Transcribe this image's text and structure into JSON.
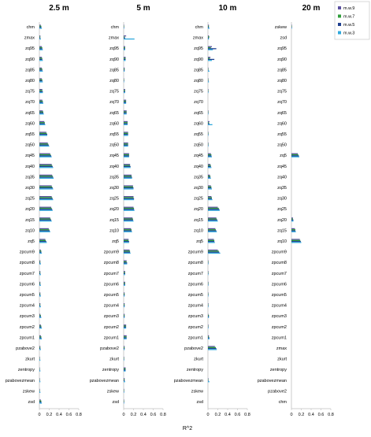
{
  "figure": {
    "xlabel": "R^2",
    "legend_position": "top-right"
  },
  "colors": {
    "m.w.9": "#5a4fa0",
    "m.w.7": "#2f9e3a",
    "m.w.5": "#1f3f8f",
    "m.w.3": "#2fa8dc",
    "axis": "#bfbfbf",
    "text": "#000000"
  },
  "chart_data": [
    {
      "type": "bar",
      "orientation": "horizontal",
      "title": "2.5 m",
      "xlim": [
        0,
        0.8
      ],
      "xticks": [
        "0",
        "0.2",
        "0.4",
        "0.6",
        "0.8"
      ],
      "categories": [
        "chm",
        "zmax",
        "zq95",
        "zq90",
        "zq85",
        "zq80",
        "zq75",
        "zq70",
        "zq65",
        "zq60",
        "zq55",
        "zq50",
        "zq45",
        "zq40",
        "zq35",
        "zq30",
        "zq25",
        "zq20",
        "zq15",
        "zq10",
        "zq5",
        "zpcum9",
        "zpcum8",
        "zpcum7",
        "zpcum6",
        "zpcum5",
        "zpcum4",
        "zpcum3",
        "zpcum2",
        "zpcum1",
        "pzabove2",
        "zkurt",
        "zentropy",
        "pzabovezmean",
        "zskew",
        "zsd"
      ],
      "series": [
        {
          "name": "m.w.9",
          "values": [
            0.03,
            0.02,
            0.05,
            0.05,
            0.05,
            0.05,
            0.06,
            0.06,
            0.07,
            0.1,
            0.14,
            0.17,
            0.22,
            0.25,
            0.26,
            0.25,
            0.25,
            0.24,
            0.22,
            0.19,
            0.12,
            0.03,
            0.02,
            0.02,
            0.02,
            0.02,
            0.02,
            0.02,
            0.03,
            0.03,
            0.02,
            0.01,
            0.01,
            0.01,
            0.01,
            0.03
          ]
        },
        {
          "name": "m.w.7",
          "values": [
            0.04,
            0.02,
            0.06,
            0.06,
            0.06,
            0.06,
            0.06,
            0.07,
            0.08,
            0.11,
            0.15,
            0.18,
            0.23,
            0.26,
            0.27,
            0.26,
            0.26,
            0.25,
            0.23,
            0.2,
            0.13,
            0.04,
            0.02,
            0.02,
            0.02,
            0.02,
            0.02,
            0.03,
            0.04,
            0.04,
            0.02,
            0.01,
            0.01,
            0.01,
            0.01,
            0.04
          ]
        },
        {
          "name": "m.w.5",
          "values": [
            0.04,
            0.02,
            0.06,
            0.06,
            0.06,
            0.06,
            0.07,
            0.07,
            0.08,
            0.11,
            0.16,
            0.19,
            0.24,
            0.27,
            0.28,
            0.27,
            0.27,
            0.26,
            0.24,
            0.21,
            0.14,
            0.04,
            0.02,
            0.02,
            0.02,
            0.02,
            0.02,
            0.03,
            0.04,
            0.04,
            0.02,
            0.01,
            0.01,
            0.01,
            0.01,
            0.04
          ]
        },
        {
          "name": "m.w.3",
          "values": [
            0.05,
            0.03,
            0.07,
            0.07,
            0.07,
            0.07,
            0.07,
            0.08,
            0.09,
            0.12,
            0.16,
            0.2,
            0.25,
            0.28,
            0.29,
            0.28,
            0.28,
            0.27,
            0.25,
            0.22,
            0.15,
            0.05,
            0.03,
            0.03,
            0.03,
            0.03,
            0.03,
            0.04,
            0.05,
            0.05,
            0.03,
            0.02,
            0.02,
            0.02,
            0.02,
            0.05
          ]
        }
      ]
    },
    {
      "type": "bar",
      "orientation": "horizontal",
      "title": "5 m",
      "xlim": [
        0,
        0.8
      ],
      "xticks": [
        "0",
        "0.2",
        "0.4",
        "0.6",
        "0.8"
      ],
      "categories": [
        "chm",
        "zmax",
        "zq95",
        "zq90",
        "zq85",
        "zq80",
        "zq75",
        "zq70",
        "zq65",
        "zq60",
        "zq55",
        "zq50",
        "zq45",
        "zq40",
        "zq35",
        "zq30",
        "zq25",
        "zq20",
        "zq15",
        "zq10",
        "zq5",
        "zpcum9",
        "zpcum8",
        "zpcum7",
        "zpcum6",
        "zpcum5",
        "zpcum4",
        "zpcum3",
        "zpcum2",
        "zpcum1",
        "pzabove2",
        "zkurt",
        "zentropy",
        "pzabovezmean",
        "zskew",
        "zsd"
      ],
      "series": [
        {
          "name": "m.w.9",
          "values": [
            0.01,
            0.05,
            0.03,
            0.04,
            0.02,
            0.01,
            0.03,
            0.05,
            0.06,
            0.08,
            0.09,
            0.09,
            0.11,
            0.13,
            0.16,
            0.19,
            0.2,
            0.2,
            0.18,
            0.15,
            0.1,
            0.12,
            0.06,
            0.03,
            0.03,
            0.02,
            0.02,
            0.02,
            0.05,
            0.06,
            0.02,
            0.01,
            0.04,
            0.02,
            0.01,
            0.01
          ]
        },
        {
          "name": "m.w.7",
          "values": [
            0.01,
            0.02,
            0.03,
            0.04,
            0.02,
            0.01,
            0.03,
            0.05,
            0.06,
            0.08,
            0.09,
            0.09,
            0.11,
            0.13,
            0.16,
            0.19,
            0.2,
            0.21,
            0.19,
            0.16,
            0.1,
            0.13,
            0.06,
            0.03,
            0.03,
            0.02,
            0.02,
            0.02,
            0.05,
            0.06,
            0.02,
            0.01,
            0.04,
            0.02,
            0.01,
            0.01
          ]
        },
        {
          "name": "m.w.5",
          "values": [
            0.01,
            0.03,
            0.03,
            0.04,
            0.02,
            0.01,
            0.03,
            0.05,
            0.06,
            0.08,
            0.09,
            0.09,
            0.11,
            0.14,
            0.17,
            0.2,
            0.21,
            0.21,
            0.19,
            0.16,
            0.11,
            0.13,
            0.07,
            0.03,
            0.03,
            0.02,
            0.02,
            0.02,
            0.05,
            0.06,
            0.02,
            0.01,
            0.04,
            0.02,
            0.01,
            0.01
          ]
        },
        {
          "name": "m.w.3",
          "values": [
            0.01,
            0.22,
            0.03,
            0.04,
            0.02,
            0.01,
            0.03,
            0.05,
            0.06,
            0.08,
            0.09,
            0.09,
            0.11,
            0.14,
            0.17,
            0.2,
            0.21,
            0.22,
            0.2,
            0.17,
            0.11,
            0.14,
            0.07,
            0.03,
            0.03,
            0.02,
            0.02,
            0.02,
            0.05,
            0.06,
            0.02,
            0.01,
            0.04,
            0.03,
            0.01,
            0.01
          ]
        }
      ]
    },
    {
      "type": "bar",
      "orientation": "horizontal",
      "title": "10 m",
      "xlim": [
        0,
        0.8
      ],
      "xticks": [
        "0",
        "0.2",
        "0.4",
        "0.6",
        "0.8"
      ],
      "categories": [
        "chm",
        "zmax",
        "zq95",
        "zq90",
        "zq85",
        "zq80",
        "zq75",
        "zq70",
        "zq65",
        "zq60",
        "zq55",
        "zq50",
        "zq45",
        "zq40",
        "zq35",
        "zq30",
        "zq25",
        "zq20",
        "zq15",
        "zq10",
        "zq5",
        "zpcum9",
        "zpcum8",
        "zpcum7",
        "zpcum6",
        "zpcum5",
        "zpcum4",
        "zpcum3",
        "zpcum2",
        "zpcum1",
        "pzabove2",
        "zkurt",
        "zentropy",
        "pzabovezmean",
        "zskew",
        "zsd"
      ],
      "series": [
        {
          "name": "m.w.9",
          "values": [
            0.02,
            0.02,
            0.08,
            0.05,
            0.01,
            0.01,
            0.01,
            0.0,
            0.01,
            0.03,
            0.01,
            0.01,
            0.06,
            0.05,
            0.04,
            0.06,
            0.07,
            0.2,
            0.17,
            0.15,
            0.12,
            0.2,
            0.01,
            0.01,
            0.01,
            0.01,
            0.01,
            0.01,
            0.01,
            0.02,
            0.14,
            0.0,
            0.0,
            0.01,
            0.0,
            0.0
          ]
        },
        {
          "name": "m.w.7",
          "values": [
            0.02,
            0.03,
            0.06,
            0.04,
            0.01,
            0.01,
            0.01,
            0.0,
            0.01,
            0.02,
            0.01,
            0.01,
            0.07,
            0.06,
            0.05,
            0.07,
            0.08,
            0.22,
            0.18,
            0.16,
            0.13,
            0.22,
            0.01,
            0.01,
            0.01,
            0.01,
            0.01,
            0.02,
            0.01,
            0.02,
            0.16,
            0.0,
            0.0,
            0.01,
            0.0,
            0.0
          ]
        },
        {
          "name": "m.w.5",
          "values": [
            0.02,
            0.02,
            0.17,
            0.13,
            0.01,
            0.01,
            0.01,
            0.0,
            0.01,
            0.03,
            0.01,
            0.01,
            0.07,
            0.06,
            0.05,
            0.07,
            0.08,
            0.23,
            0.19,
            0.17,
            0.13,
            0.23,
            0.01,
            0.01,
            0.01,
            0.01,
            0.01,
            0.02,
            0.01,
            0.03,
            0.17,
            0.0,
            0.0,
            0.01,
            0.0,
            0.0
          ]
        },
        {
          "name": "m.w.3",
          "values": [
            0.03,
            0.02,
            0.1,
            0.08,
            0.03,
            0.02,
            0.01,
            0.0,
            0.01,
            0.09,
            0.01,
            0.01,
            0.08,
            0.07,
            0.06,
            0.08,
            0.09,
            0.24,
            0.2,
            0.18,
            0.14,
            0.25,
            0.01,
            0.01,
            0.01,
            0.01,
            0.01,
            0.02,
            0.01,
            0.03,
            0.18,
            0.0,
            0.0,
            0.03,
            0.0,
            0.0
          ]
        }
      ]
    },
    {
      "type": "bar",
      "orientation": "horizontal",
      "title": "20 m",
      "xlim": [
        0,
        0.8
      ],
      "xticks": [
        "0",
        "0.2",
        "0.4",
        "0.6",
        "0.8"
      ],
      "categories": [
        "zskew",
        "zsd",
        "zq95",
        "zq90",
        "zq85",
        "zq80",
        "zq75",
        "zq70",
        "zq65",
        "zq60",
        "zq55",
        "zq50",
        "zq5",
        "zq45",
        "zq40",
        "zq35",
        "zq30",
        "zq25",
        "zq20",
        "zq15",
        "zq10",
        "zpcum9",
        "zpcum8",
        "zpcum7",
        "zpcum6",
        "zpcum5",
        "zpcum4",
        "zpcum3",
        "zpcum2",
        "zpcum1",
        "zmax",
        "zkurt",
        "zentropy",
        "pzabovezmean",
        "pzabove2",
        "chm"
      ],
      "series": [
        {
          "name": "m.w.9",
          "values": [
            0.01,
            0.0,
            0.0,
            0.0,
            0.0,
            0.0,
            0.0,
            0.0,
            0.0,
            0.0,
            0.0,
            0.0,
            0.13,
            0.0,
            0.0,
            0.0,
            0.0,
            0.0,
            0.03,
            0.07,
            0.17,
            0.0,
            0.0,
            0.0,
            0.0,
            0.0,
            0.0,
            0.0,
            0.0,
            0.0,
            0.0,
            0.0,
            0.0,
            0.0,
            0.0,
            0.0
          ]
        },
        {
          "name": "m.w.7",
          "values": [
            0.01,
            0.0,
            0.0,
            0.0,
            0.0,
            0.0,
            0.0,
            0.0,
            0.0,
            0.0,
            0.0,
            0.0,
            0.14,
            0.0,
            0.0,
            0.0,
            0.0,
            0.0,
            0.03,
            0.08,
            0.18,
            0.0,
            0.0,
            0.0,
            0.0,
            0.0,
            0.0,
            0.0,
            0.0,
            0.0,
            0.0,
            0.0,
            0.0,
            0.0,
            0.0,
            0.0
          ]
        },
        {
          "name": "m.w.5",
          "values": [
            0.01,
            0.0,
            0.0,
            0.0,
            0.0,
            0.0,
            0.0,
            0.0,
            0.0,
            0.0,
            0.0,
            0.0,
            0.15,
            0.0,
            0.0,
            0.0,
            0.0,
            0.0,
            0.04,
            0.08,
            0.19,
            0.0,
            0.0,
            0.0,
            0.0,
            0.0,
            0.0,
            0.0,
            0.0,
            0.0,
            0.0,
            0.0,
            0.0,
            0.0,
            0.0,
            0.0
          ]
        },
        {
          "name": "m.w.3",
          "values": [
            0.01,
            0.0,
            0.0,
            0.0,
            0.0,
            0.0,
            0.0,
            0.0,
            0.0,
            0.0,
            0.0,
            0.0,
            0.16,
            0.0,
            0.0,
            0.0,
            0.0,
            0.0,
            0.04,
            0.09,
            0.2,
            0.0,
            0.0,
            0.0,
            0.0,
            0.0,
            0.0,
            0.0,
            0.0,
            0.0,
            0.0,
            0.0,
            0.0,
            0.0,
            0.0,
            0.0
          ]
        }
      ]
    }
  ],
  "legend": {
    "entries": [
      "m.w.9",
      "m.w.7",
      "m.w.5",
      "m.w.3"
    ]
  }
}
